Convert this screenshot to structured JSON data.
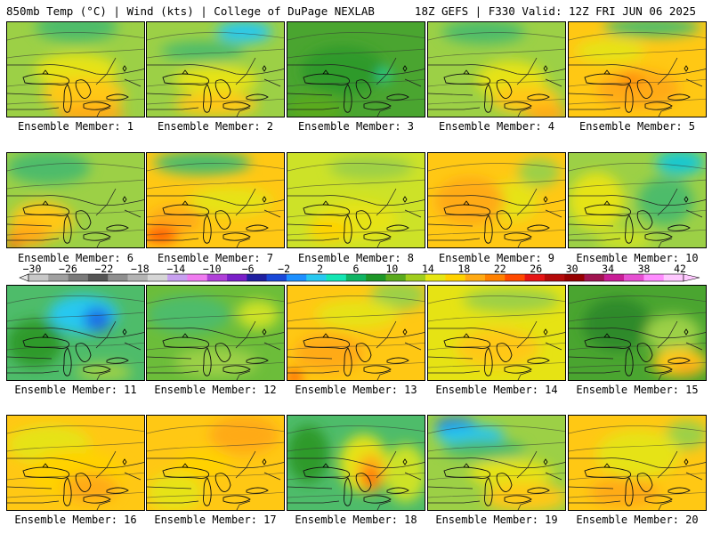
{
  "header": {
    "left": "850mb Temp (°C) | Wind (kts) | College of DuPage NEXLAB",
    "right": "18Z GEFS | F330 Valid: 12Z FRI JUN 06 2025"
  },
  "colorbar": {
    "labels": [
      "-30",
      "-26",
      "-22",
      "-18",
      "-14",
      "-10",
      "-6",
      "-2",
      "2",
      "6",
      "10",
      "14",
      "18",
      "22",
      "26",
      "30",
      "34",
      "38",
      "42"
    ],
    "colors": [
      "#c8c8c8",
      "#a0a0a0",
      "#7a7a7a",
      "#555555",
      "#8f8f8f",
      "#b4b4b4",
      "#d6d6d6",
      "#c8a0f0",
      "#f07cf0",
      "#b040d8",
      "#7a20c8",
      "#2020a0",
      "#1a48d8",
      "#1e90ff",
      "#28c8f0",
      "#14e6b4",
      "#10b464",
      "#1e9628",
      "#5aaa1e",
      "#a0cd1e",
      "#e6e614",
      "#ffd200",
      "#ffaa14",
      "#ff8000",
      "#ff4a00",
      "#e61414",
      "#b40a0a",
      "#960000",
      "#a01450",
      "#c81e96",
      "#e650d2",
      "#ff8cff",
      "#ffc8ff"
    ]
  },
  "members": [
    {
      "label": "Ensemble Member: 1",
      "base": "#9cd046",
      "blobs": [
        [
          "#4ebc6a",
          0.5,
          0.05,
          0.6,
          0.3
        ],
        [
          "#e6e314",
          0.5,
          0.5,
          0.6,
          0.35
        ],
        [
          "#ffc814",
          0.55,
          0.75,
          0.6,
          0.35
        ],
        [
          "#ffaa14",
          0.6,
          0.95,
          0.5,
          0.2
        ]
      ]
    },
    {
      "label": "Ensemble Member: 2",
      "base": "#9cd046",
      "blobs": [
        [
          "#28c8f0",
          0.7,
          0.1,
          0.4,
          0.22
        ],
        [
          "#4ebc6a",
          0.4,
          0.3,
          0.6,
          0.2
        ],
        [
          "#e6e314",
          0.5,
          0.6,
          0.6,
          0.3
        ],
        [
          "#ffc814",
          0.5,
          0.85,
          0.6,
          0.25
        ]
      ]
    },
    {
      "label": "Ensemble Member: 3",
      "base": "#4aa530",
      "blobs": [
        [
          "#2f9a2c",
          0.4,
          0.5,
          0.6,
          0.5
        ],
        [
          "#14e6b4",
          0.7,
          0.55,
          0.1,
          0.1
        ],
        [
          "#5aaa1e",
          0.2,
          0.9,
          0.4,
          0.3
        ]
      ]
    },
    {
      "label": "Ensemble Member: 4",
      "base": "#9cd046",
      "blobs": [
        [
          "#4ebc6a",
          0.4,
          0.1,
          0.6,
          0.25
        ],
        [
          "#e6e314",
          0.6,
          0.6,
          0.5,
          0.4
        ],
        [
          "#ffc814",
          0.7,
          0.8,
          0.5,
          0.3
        ],
        [
          "#ffaa14",
          0.85,
          0.95,
          0.3,
          0.2
        ]
      ]
    },
    {
      "label": "Ensemble Member: 5",
      "base": "#ffc814",
      "blobs": [
        [
          "#4ebc6a",
          0.6,
          0.05,
          0.7,
          0.2
        ],
        [
          "#e6e314",
          0.3,
          0.3,
          0.5,
          0.25
        ],
        [
          "#ffaa14",
          0.5,
          0.7,
          0.6,
          0.4
        ],
        [
          "#ff8000",
          0.45,
          0.6,
          0.15,
          0.12
        ]
      ]
    },
    {
      "label": "Ensemble Member: 6",
      "base": "#9cd046",
      "blobs": [
        [
          "#4ebc6a",
          0.3,
          0.15,
          0.6,
          0.35
        ],
        [
          "#ffc814",
          0.25,
          0.7,
          0.45,
          0.4
        ],
        [
          "#ffaa14",
          0.15,
          0.85,
          0.3,
          0.25
        ],
        [
          "#ff4a00",
          0.05,
          0.95,
          0.1,
          0.1
        ]
      ]
    },
    {
      "label": "Ensemble Member: 7",
      "base": "#ffc814",
      "blobs": [
        [
          "#4ebc6a",
          0.4,
          0.1,
          0.7,
          0.25
        ],
        [
          "#e6e314",
          0.6,
          0.5,
          0.6,
          0.3
        ],
        [
          "#ffaa14",
          0.2,
          0.7,
          0.4,
          0.3
        ],
        [
          "#ff4a00",
          0.1,
          0.85,
          0.25,
          0.15
        ]
      ]
    },
    {
      "label": "Ensemble Member: 8",
      "base": "#cde228",
      "blobs": [
        [
          "#9cd046",
          0.6,
          0.15,
          0.6,
          0.25
        ],
        [
          "#e6e314",
          0.5,
          0.7,
          0.6,
          0.4
        ],
        [
          "#ffd200",
          0.3,
          0.8,
          0.3,
          0.25
        ]
      ]
    },
    {
      "label": "Ensemble Member: 9",
      "base": "#ffc814",
      "blobs": [
        [
          "#9cd046",
          0.8,
          0.2,
          0.3,
          0.3
        ],
        [
          "#e6e314",
          0.6,
          0.5,
          0.4,
          0.4
        ],
        [
          "#ffaa14",
          0.3,
          0.5,
          0.5,
          0.5
        ]
      ]
    },
    {
      "label": "Ensemble Member: 10",
      "base": "#9cd046",
      "blobs": [
        [
          "#14c8d2",
          0.8,
          0.1,
          0.35,
          0.25
        ],
        [
          "#4ebc6a",
          0.7,
          0.5,
          0.4,
          0.5
        ],
        [
          "#e6e314",
          0.2,
          0.5,
          0.4,
          0.6
        ],
        [
          "#cde228",
          0.4,
          0.9,
          0.4,
          0.2
        ]
      ]
    },
    {
      "label": "Ensemble Member: 11",
      "base": "#4ebc6a",
      "blobs": [
        [
          "#28c8f0",
          0.55,
          0.3,
          0.5,
          0.4
        ],
        [
          "#1e6ee6",
          0.65,
          0.35,
          0.2,
          0.25
        ],
        [
          "#2f9a2c",
          0.2,
          0.6,
          0.4,
          0.5
        ],
        [
          "#9cd046",
          0.7,
          0.9,
          0.4,
          0.2
        ]
      ]
    },
    {
      "label": "Ensemble Member: 12",
      "base": "#6cbd3a",
      "blobs": [
        [
          "#4ebc6a",
          0.3,
          0.3,
          0.6,
          0.4
        ],
        [
          "#9cd046",
          0.5,
          0.8,
          0.6,
          0.3
        ],
        [
          "#cde228",
          0.8,
          0.3,
          0.3,
          0.3
        ]
      ]
    },
    {
      "label": "Ensemble Member: 13",
      "base": "#ffc814",
      "blobs": [
        [
          "#9cd046",
          0.8,
          0.1,
          0.4,
          0.3
        ],
        [
          "#e6e314",
          0.5,
          0.3,
          0.6,
          0.3
        ],
        [
          "#ffaa14",
          0.3,
          0.7,
          0.5,
          0.4
        ],
        [
          "#ff4a00",
          0.05,
          0.95,
          0.1,
          0.15
        ]
      ]
    },
    {
      "label": "Ensemble Member: 14",
      "base": "#e6e314",
      "blobs": [
        [
          "#9cd046",
          0.6,
          0.15,
          0.7,
          0.25
        ],
        [
          "#ffc814",
          0.5,
          0.65,
          0.6,
          0.4
        ]
      ]
    },
    {
      "label": "Ensemble Member: 15",
      "base": "#4aa530",
      "blobs": [
        [
          "#2f8a2c",
          0.35,
          0.4,
          0.5,
          0.55
        ],
        [
          "#9cd046",
          0.75,
          0.5,
          0.4,
          0.4
        ],
        [
          "#ffc814",
          0.8,
          0.8,
          0.4,
          0.3
        ],
        [
          "#ffaa14",
          0.85,
          0.85,
          0.2,
          0.15
        ]
      ]
    },
    {
      "label": "Ensemble Member: 16",
      "base": "#ffc814",
      "blobs": [
        [
          "#e6e314",
          0.3,
          0.3,
          0.6,
          0.4
        ],
        [
          "#ffd200",
          0.5,
          0.6,
          0.7,
          0.5
        ],
        [
          "#ffaa14",
          0.6,
          0.75,
          0.4,
          0.3
        ]
      ]
    },
    {
      "label": "Ensemble Member: 17",
      "base": "#ffc814",
      "blobs": [
        [
          "#e6e314",
          0.2,
          0.8,
          0.4,
          0.4
        ],
        [
          "#ffaa14",
          0.7,
          0.2,
          0.5,
          0.4
        ],
        [
          "#ffd200",
          0.4,
          0.5,
          0.4,
          0.3
        ]
      ]
    },
    {
      "label": "Ensemble Member: 18",
      "base": "#4ebc6a",
      "blobs": [
        [
          "#2f9a2c",
          0.15,
          0.4,
          0.3,
          0.6
        ],
        [
          "#e6e314",
          0.55,
          0.5,
          0.35,
          0.6
        ],
        [
          "#ffaa14",
          0.6,
          0.6,
          0.2,
          0.4
        ],
        [
          "#ff4a00",
          0.6,
          0.65,
          0.08,
          0.2
        ],
        [
          "#cde228",
          0.85,
          0.6,
          0.3,
          0.6
        ]
      ]
    },
    {
      "label": "Ensemble Member: 19",
      "base": "#9cd046",
      "blobs": [
        [
          "#1e6ee6",
          0.2,
          0.1,
          0.3,
          0.15
        ],
        [
          "#28c8f0",
          0.3,
          0.2,
          0.5,
          0.2
        ],
        [
          "#4ebc6a",
          0.4,
          0.35,
          0.6,
          0.2
        ],
        [
          "#e6e314",
          0.6,
          0.6,
          0.6,
          0.3
        ],
        [
          "#ffc814",
          0.7,
          0.85,
          0.6,
          0.3
        ]
      ]
    },
    {
      "label": "Ensemble Member: 20",
      "base": "#ffc814",
      "blobs": [
        [
          "#9cd046",
          0.85,
          0.2,
          0.3,
          0.3
        ],
        [
          "#e6e314",
          0.5,
          0.4,
          0.6,
          0.5
        ],
        [
          "#ffaa14",
          0.4,
          0.8,
          0.5,
          0.3
        ]
      ]
    }
  ]
}
